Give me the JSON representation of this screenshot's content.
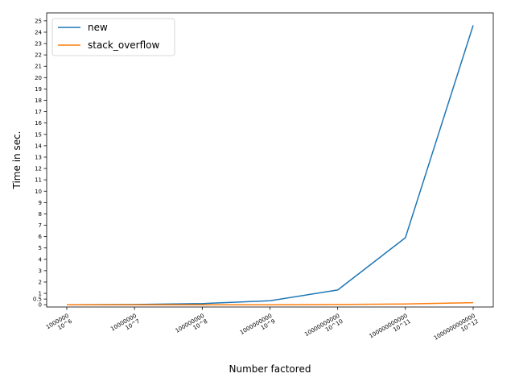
{
  "chart_data": {
    "type": "line",
    "xlabel": "Number factored",
    "ylabel": "Time in sec.",
    "categories": [
      [
        "1000000",
        "10^6"
      ],
      [
        "10000000",
        "10^7"
      ],
      [
        "100000000",
        "10^8"
      ],
      [
        "1000000000",
        "10^9"
      ],
      [
        "10000000000",
        "10^10"
      ],
      [
        "100000000000",
        "10^11"
      ],
      [
        "1000000000000",
        "10^12"
      ]
    ],
    "yticks": [
      0,
      0.5,
      1,
      2,
      3,
      4,
      5,
      6,
      7,
      8,
      9,
      10,
      11,
      12,
      13,
      14,
      15,
      16,
      17,
      18,
      19,
      20,
      21,
      22,
      23,
      24,
      25
    ],
    "ytick_labels": [
      "0",
      "0.5",
      "1",
      "2",
      "3",
      "4",
      "5",
      "6",
      "7",
      "8",
      "9",
      "10",
      "11",
      "12",
      "13",
      "14",
      "15",
      "16",
      "17",
      "18",
      "19",
      "20",
      "21",
      "22",
      "23",
      "24",
      "25"
    ],
    "ylim": [
      -0.2,
      25.7
    ],
    "series": [
      {
        "name": "new",
        "color": "#1f77b4",
        "values": [
          0.0,
          0.02,
          0.1,
          0.35,
          1.3,
          5.9,
          24.6
        ]
      },
      {
        "name": "stack_overflow",
        "color": "#ff7f0e",
        "values": [
          0.0,
          0.0,
          0.0,
          0.0,
          0.02,
          0.07,
          0.18
        ]
      }
    ],
    "legend": "upper-left",
    "grid": false
  }
}
